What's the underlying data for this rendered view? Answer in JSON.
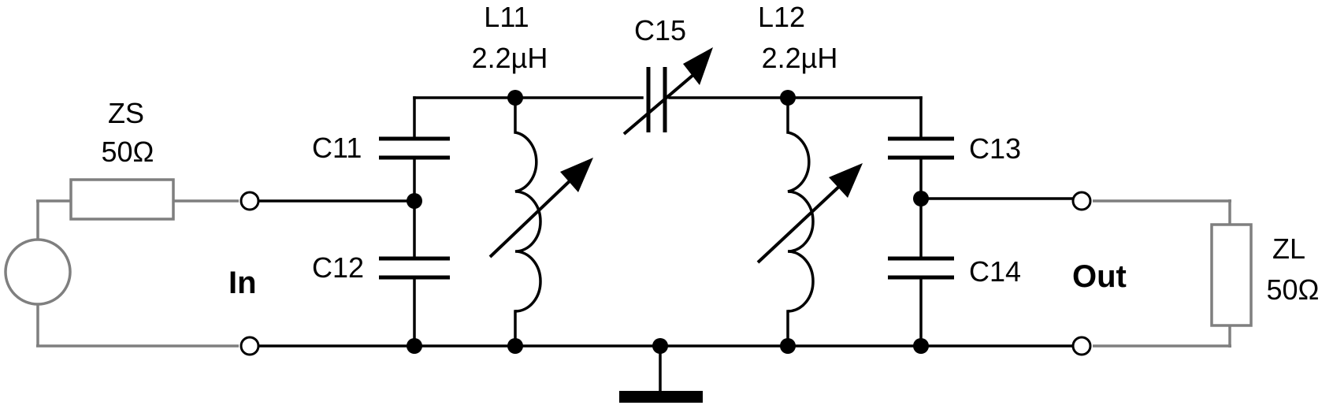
{
  "labels": {
    "zs_name": "ZS",
    "zs_value": "50Ω",
    "zl_name": "ZL",
    "zl_value": "50Ω",
    "in": "In",
    "out": "Out",
    "c11": "C11",
    "c12": "C12",
    "c13": "C13",
    "c14": "C14",
    "c15": "C15",
    "l11_name": "L11",
    "l11_value": "2.2µH",
    "l12_name": "L12",
    "l12_value": "2.2µH"
  },
  "colors": {
    "wire": "#000000",
    "external": "#7f7f7f",
    "background": "#ffffff"
  }
}
